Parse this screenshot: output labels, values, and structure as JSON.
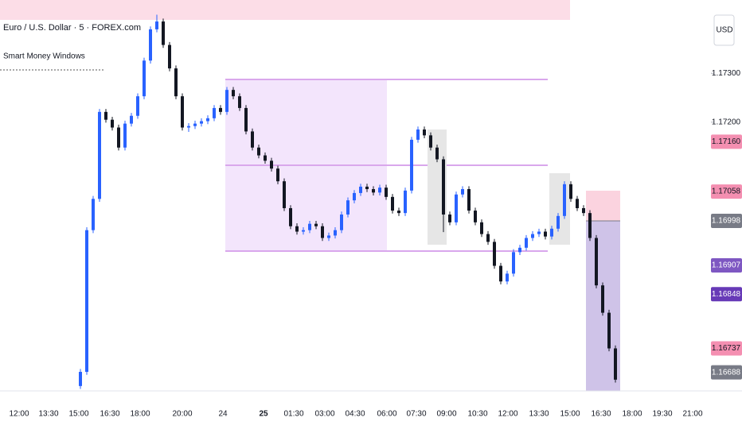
{
  "chart_data": {
    "type": "candlestick",
    "title": "Euro / U.S. Dollar · 5 · FOREX.com",
    "subtitle": "Smart Money Windows",
    "currency": "USD",
    "up_color": "#2962ff",
    "down_color": "#131722",
    "ylim": [
      1.1665,
      1.1745
    ],
    "yticks": [
      {
        "value": 1.172,
        "label": "1.17200"
      },
      {
        "value": 1.173,
        "label": "1.17300"
      }
    ],
    "price_labels": [
      {
        "value": 1.1716,
        "label": "1.17160",
        "color": "#f48fb1"
      },
      {
        "value": 1.17058,
        "label": "1.17058",
        "color": "#f48fb1"
      },
      {
        "value": 1.16998,
        "label": "1.16998",
        "color": "#787b86"
      },
      {
        "value": 1.16907,
        "label": "1.16907",
        "color": "#7e57c2"
      },
      {
        "value": 1.16848,
        "label": "1.16848",
        "color": "#673ab7"
      },
      {
        "value": 1.16737,
        "label": "1.16737",
        "color": "#f48fb1"
      },
      {
        "value": 1.16688,
        "label": "1.16688",
        "color": "#787b86"
      }
    ],
    "x_labels": [
      "12:00",
      "13:30",
      "15:00",
      "16:30",
      "18:00",
      "20:00",
      "24",
      "25",
      "01:30",
      "03:00",
      "04:30",
      "06:00",
      "07:30",
      "09:00",
      "10:30",
      "12:00",
      "13:30",
      "15:00",
      "16:30",
      "18:00",
      "19:30",
      "21:00"
    ],
    "ohlc": [
      [
        1.1666,
        1.16695,
        1.16654,
        1.16689
      ],
      [
        1.16689,
        1.16985,
        1.16683,
        1.16979
      ],
      [
        1.16979,
        1.17049,
        1.16973,
        1.17043
      ],
      [
        1.17043,
        1.17227,
        1.17037,
        1.17221
      ],
      [
        1.17221,
        1.17227,
        1.17199,
        1.17205
      ],
      [
        1.17205,
        1.17211,
        1.17183,
        1.17189
      ],
      [
        1.17189,
        1.17195,
        1.17142,
        1.17148
      ],
      [
        1.17148,
        1.17203,
        1.17142,
        1.17197
      ],
      [
        1.17197,
        1.17219,
        1.17191,
        1.17213
      ],
      [
        1.17213,
        1.17259,
        1.17207,
        1.17253
      ],
      [
        1.17253,
        1.17332,
        1.17247,
        1.17326
      ],
      [
        1.17326,
        1.17396,
        1.1732,
        1.1739
      ],
      [
        1.1739,
        1.1742,
        1.17384,
        1.17406
      ],
      [
        1.17406,
        1.17412,
        1.17352,
        1.17358
      ],
      [
        1.17358,
        1.17364,
        1.17304,
        1.1731
      ],
      [
        1.1731,
        1.17316,
        1.17247,
        1.17253
      ],
      [
        1.17253,
        1.17259,
        1.17183,
        1.17189
      ],
      [
        1.17189,
        1.17198,
        1.1718,
        1.17192
      ],
      [
        1.17192,
        1.17203,
        1.17186,
        1.17197
      ],
      [
        1.17197,
        1.17208,
        1.17191,
        1.17202
      ],
      [
        1.17202,
        1.17214,
        1.17196,
        1.17208
      ],
      [
        1.17208,
        1.17235,
        1.17202,
        1.17229
      ],
      [
        1.17229,
        1.17235,
        1.17215,
        1.17221
      ],
      [
        1.17221,
        1.17272,
        1.17215,
        1.17266
      ],
      [
        1.17266,
        1.17272,
        1.17247,
        1.17253
      ],
      [
        1.17253,
        1.17259,
        1.17223,
        1.17229
      ],
      [
        1.17229,
        1.17235,
        1.17175,
        1.17181
      ],
      [
        1.17181,
        1.17187,
        1.17142,
        1.17148
      ],
      [
        1.17148,
        1.17154,
        1.17126,
        1.17132
      ],
      [
        1.17132,
        1.17138,
        1.17115,
        1.17121
      ],
      [
        1.17121,
        1.17127,
        1.17099,
        1.17105
      ],
      [
        1.17105,
        1.17111,
        1.17073,
        1.17079
      ],
      [
        1.17079,
        1.17085,
        1.17018,
        1.17024
      ],
      [
        1.17024,
        1.1703,
        1.16981,
        1.16987
      ],
      [
        1.16987,
        1.16993,
        1.1697,
        1.16976
      ],
      [
        1.16976,
        1.16985,
        1.1697,
        1.16979
      ],
      [
        1.16979,
        1.16998,
        1.16973,
        1.16992
      ],
      [
        1.16992,
        1.16998,
        1.16981,
        1.16987
      ],
      [
        1.16987,
        1.16993,
        1.16957,
        1.16963
      ],
      [
        1.16963,
        1.16974,
        1.16957,
        1.16968
      ],
      [
        1.16968,
        1.16985,
        1.16962,
        1.16979
      ],
      [
        1.16979,
        1.17017,
        1.16973,
        1.17011
      ],
      [
        1.17011,
        1.17046,
        1.17005,
        1.1704
      ],
      [
        1.1704,
        1.17061,
        1.17034,
        1.17055
      ],
      [
        1.17055,
        1.17074,
        1.17049,
        1.17068
      ],
      [
        1.17068,
        1.17074,
        1.17057,
        1.17063
      ],
      [
        1.17063,
        1.17069,
        1.1705,
        1.17056
      ],
      [
        1.17056,
        1.17072,
        1.1705,
        1.17066
      ],
      [
        1.17066,
        1.17072,
        1.17041,
        1.17047
      ],
      [
        1.17047,
        1.17053,
        1.17013,
        1.17019
      ],
      [
        1.17019,
        1.17025,
        1.17008,
        1.17014
      ],
      [
        1.17014,
        1.17066,
        1.17008,
        1.1706
      ],
      [
        1.1706,
        1.1717,
        1.17054,
        1.17164
      ],
      [
        1.17164,
        1.17191,
        1.17158,
        1.17185
      ],
      [
        1.17185,
        1.17191,
        1.17167,
        1.17173
      ],
      [
        1.17173,
        1.17179,
        1.17142,
        1.17148
      ],
      [
        1.17148,
        1.17154,
        1.17118,
        1.17124
      ],
      [
        1.17124,
        1.1713,
        1.16975,
        1.17011
      ],
      [
        1.17011,
        1.17017,
        1.16989,
        1.16995
      ],
      [
        1.16995,
        1.17058,
        1.16989,
        1.17052
      ],
      [
        1.17052,
        1.17069,
        1.17046,
        1.17063
      ],
      [
        1.17063,
        1.17069,
        1.17013,
        1.17019
      ],
      [
        1.17019,
        1.17025,
        1.16989,
        1.16995
      ],
      [
        1.16995,
        1.17001,
        1.16965,
        1.16971
      ],
      [
        1.16971,
        1.16977,
        1.16949,
        1.16955
      ],
      [
        1.16955,
        1.16961,
        1.169,
        1.16906
      ],
      [
        1.16906,
        1.16912,
        1.16868,
        1.16874
      ],
      [
        1.16874,
        1.16896,
        1.16868,
        1.1689
      ],
      [
        1.1689,
        1.1694,
        1.16884,
        1.16934
      ],
      [
        1.16934,
        1.16949,
        1.16928,
        1.16943
      ],
      [
        1.16943,
        1.16969,
        1.16937,
        1.16963
      ],
      [
        1.16963,
        1.16977,
        1.16957,
        1.16971
      ],
      [
        1.16971,
        1.16982,
        1.16965,
        1.16976
      ],
      [
        1.16976,
        1.16982,
        1.1696,
        1.16966
      ],
      [
        1.16966,
        1.16988,
        1.1696,
        1.16982
      ],
      [
        1.16982,
        1.17014,
        1.16976,
        1.17008
      ],
      [
        1.17008,
        1.17079,
        1.17002,
        1.17073
      ],
      [
        1.17073,
        1.17079,
        1.17037,
        1.17043
      ],
      [
        1.17043,
        1.17049,
        1.17018,
        1.17024
      ],
      [
        1.17024,
        1.1703,
        1.17008,
        1.17014
      ],
      [
        1.17014,
        1.1702,
        1.16957,
        1.16963
      ],
      [
        1.16963,
        1.16969,
        1.1686,
        1.16866
      ],
      [
        1.16866,
        1.16872,
        1.16804,
        1.1681
      ],
      [
        1.1681,
        1.16816,
        1.16731,
        1.16737
      ],
      [
        1.16737,
        1.16743,
        1.16667,
        1.16673
      ]
    ]
  }
}
